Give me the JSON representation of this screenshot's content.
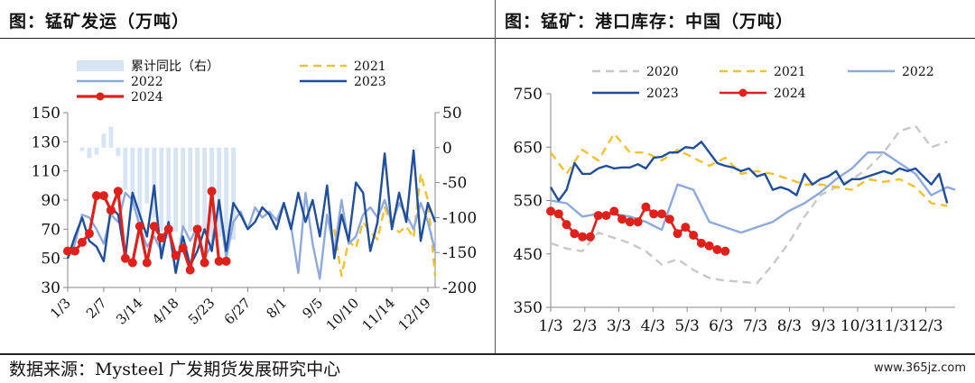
{
  "left": {
    "title": "图：锰矿发运（万吨）",
    "chart_data": {
      "type": "line",
      "x_tick_labels": [
        "1/3",
        "2/7",
        "3/14",
        "4/18",
        "5/23",
        "6/27",
        "8/1",
        "9/5",
        "10/10",
        "11/14",
        "12/19"
      ],
      "ylim_left": [
        30,
        150
      ],
      "yticks_left": [
        30,
        50,
        70,
        90,
        110,
        130,
        150
      ],
      "ylim_right": [
        -200,
        50
      ],
      "yticks_right": [
        -200,
        -150,
        -100,
        -50,
        0,
        50
      ],
      "x_range_weeks": [
        0,
        51
      ],
      "grid": false,
      "legend": "top",
      "series": [
        {
          "name": "累计同比（右）",
          "kind": "bar",
          "axis": "right",
          "color": "#d6e4f3",
          "x": [
            1,
            2,
            3,
            4,
            5,
            6,
            7,
            8,
            9,
            10,
            11,
            12,
            13,
            14,
            15,
            16,
            17,
            18,
            19,
            20,
            21,
            22,
            23
          ],
          "values": [
            0,
            -5,
            -15,
            -10,
            20,
            30,
            -12,
            -60,
            -90,
            -108,
            -80,
            -100,
            -120,
            -130,
            -120,
            -115,
            -120,
            -118,
            -122,
            -128,
            -128,
            -130,
            -132
          ]
        },
        {
          "name": "2021",
          "kind": "line",
          "axis": "left",
          "color": "#f2c12e",
          "dash": "9 6",
          "width": 2.4,
          "x": [
            37,
            38,
            39,
            40,
            41,
            42,
            43,
            44,
            45,
            46,
            47,
            48,
            49,
            50,
            51
          ],
          "values": [
            70,
            38,
            62,
            57,
            75,
            68,
            63,
            85,
            72,
            68,
            72,
            64,
            108,
            90,
            38
          ]
        },
        {
          "name": "2022",
          "kind": "line",
          "axis": "left",
          "color": "#8ea9db",
          "width": 2.4,
          "x": [
            0,
            1,
            2,
            3,
            4,
            5,
            6,
            7,
            8,
            9,
            10,
            11,
            12,
            13,
            14,
            15,
            16,
            17,
            18,
            19,
            20,
            21,
            22,
            23,
            24,
            25,
            26,
            27,
            28,
            29,
            30,
            31,
            32,
            33,
            34,
            35,
            36,
            37,
            38,
            39,
            40,
            41,
            42,
            43,
            44,
            45,
            46,
            47,
            48,
            49,
            50,
            51
          ],
          "values": [
            50,
            60,
            80,
            78,
            70,
            60,
            80,
            75,
            95,
            90,
            72,
            58,
            65,
            55,
            70,
            40,
            72,
            62,
            72,
            50,
            60,
            88,
            50,
            75,
            82,
            70,
            85,
            78,
            82,
            76,
            88,
            72,
            40,
            95,
            60,
            36,
            80,
            55,
            90,
            60,
            65,
            80,
            85,
            78,
            90,
            74,
            88,
            80,
            70,
            88,
            75,
            55
          ]
        },
        {
          "name": "2023",
          "kind": "line",
          "axis": "left",
          "color": "#1f4e9c",
          "width": 2.4,
          "x": [
            0,
            1,
            2,
            3,
            4,
            5,
            6,
            7,
            8,
            9,
            10,
            11,
            12,
            13,
            14,
            15,
            16,
            17,
            18,
            19,
            20,
            21,
            22,
            23,
            24,
            25,
            26,
            27,
            28,
            29,
            30,
            31,
            32,
            33,
            34,
            35,
            36,
            37,
            38,
            39,
            40,
            41,
            42,
            43,
            44,
            45,
            46,
            47,
            48,
            49,
            50,
            51
          ],
          "values": [
            50,
            65,
            78,
            62,
            58,
            48,
            85,
            80,
            50,
            95,
            80,
            65,
            100,
            50,
            75,
            40,
            65,
            45,
            55,
            70,
            55,
            90,
            55,
            88,
            80,
            70,
            75,
            85,
            80,
            70,
            88,
            70,
            95,
            75,
            90,
            65,
            100,
            50,
            80,
            62,
            102,
            95,
            55,
            75,
            122,
            70,
            95,
            75,
            124,
            62,
            88,
            75
          ]
        },
        {
          "name": "2024",
          "kind": "line-marker",
          "axis": "left",
          "color": "#e0201b",
          "width": 3.2,
          "x": [
            0,
            1,
            2,
            3,
            4,
            5,
            6,
            7,
            8,
            9,
            10,
            11,
            12,
            13,
            14,
            15,
            16,
            17,
            18,
            19,
            20,
            21,
            22
          ],
          "values": [
            55,
            55,
            61,
            67,
            93,
            93,
            83,
            96,
            50,
            47,
            72,
            47,
            72,
            64,
            70,
            52,
            57,
            42,
            70,
            47,
            96,
            48,
            48
          ]
        }
      ]
    }
  },
  "right": {
    "title": "图：锰矿：港口库存：中国（万吨）",
    "chart_data": {
      "type": "line",
      "x_tick_labels": [
        "1/3",
        "2/3",
        "3/3",
        "4/3",
        "5/3",
        "6/3",
        "7/3",
        "8/3",
        "9/3",
        "10/3",
        "11/3",
        "12/3"
      ],
      "ylim": [
        350,
        750
      ],
      "yticks": [
        350,
        450,
        550,
        650,
        750
      ],
      "x_range_weeks": [
        0,
        51
      ],
      "grid": false,
      "legend": "top",
      "series": [
        {
          "name": "2020",
          "kind": "line",
          "color": "#c8c8c8",
          "dash": "9 6",
          "width": 2.4,
          "x": [
            0,
            2,
            4,
            6,
            8,
            10,
            12,
            14,
            16,
            18,
            20,
            22,
            24,
            26,
            28,
            30,
            32,
            34,
            36,
            38,
            40,
            42,
            44,
            46,
            48,
            50
          ],
          "values": [
            470,
            460,
            455,
            490,
            480,
            470,
            455,
            430,
            440,
            420,
            405,
            400,
            398,
            395,
            430,
            470,
            520,
            560,
            575,
            590,
            610,
            640,
            680,
            690,
            650,
            660
          ]
        },
        {
          "name": "2021",
          "kind": "line",
          "color": "#f2c12e",
          "dash": "9 6",
          "width": 2.4,
          "x": [
            0,
            2,
            4,
            6,
            8,
            10,
            12,
            14,
            16,
            18,
            20,
            22,
            24,
            26,
            28,
            30,
            32,
            34,
            36,
            38,
            40,
            42,
            44,
            46,
            48,
            50
          ],
          "values": [
            640,
            600,
            645,
            625,
            675,
            640,
            640,
            625,
            645,
            630,
            615,
            630,
            600,
            605,
            600,
            590,
            580,
            580,
            575,
            570,
            590,
            585,
            590,
            575,
            545,
            540
          ]
        },
        {
          "name": "2022",
          "kind": "line",
          "color": "#8ea9db",
          "width": 2.4,
          "x": [
            0,
            2,
            4,
            6,
            8,
            10,
            12,
            14,
            16,
            18,
            20,
            22,
            24,
            26,
            28,
            30,
            32,
            34,
            36,
            38,
            40,
            42,
            44,
            46,
            48,
            50,
            51
          ],
          "values": [
            550,
            545,
            520,
            525,
            525,
            520,
            510,
            495,
            580,
            570,
            510,
            500,
            490,
            500,
            510,
            530,
            545,
            565,
            590,
            610,
            640,
            640,
            620,
            600,
            560,
            575,
            570
          ]
        },
        {
          "name": "2023",
          "kind": "line",
          "color": "#1f4e9c",
          "width": 2.4,
          "x": [
            0,
            1,
            2,
            3,
            4,
            5,
            6,
            7,
            8,
            9,
            10,
            11,
            12,
            13,
            14,
            15,
            16,
            17,
            18,
            19,
            20,
            21,
            22,
            23,
            24,
            25,
            26,
            27,
            28,
            29,
            30,
            31,
            32,
            33,
            34,
            35,
            36,
            37,
            38,
            39,
            40,
            41,
            42,
            43,
            44,
            45,
            46,
            47,
            48,
            49,
            50
          ],
          "values": [
            575,
            550,
            570,
            620,
            600,
            600,
            610,
            615,
            610,
            612,
            612,
            618,
            610,
            630,
            632,
            640,
            640,
            650,
            648,
            660,
            640,
            620,
            615,
            612,
            605,
            610,
            595,
            600,
            570,
            575,
            570,
            560,
            600,
            580,
            590,
            595,
            605,
            580,
            590,
            590,
            595,
            600,
            605,
            600,
            610,
            605,
            610,
            595,
            580,
            600,
            545
          ]
        },
        {
          "name": "2024",
          "kind": "line-marker",
          "color": "#e0201b",
          "width": 2.6,
          "x": [
            0,
            1,
            2,
            3,
            4,
            5,
            6,
            7,
            8,
            9,
            10,
            11,
            12,
            13,
            14,
            15,
            16,
            17,
            18,
            19,
            20,
            21,
            22
          ],
          "values": [
            530,
            525,
            505,
            488,
            482,
            482,
            522,
            522,
            530,
            515,
            510,
            510,
            538,
            525,
            525,
            515,
            488,
            500,
            485,
            470,
            465,
            458,
            455
          ]
        }
      ]
    }
  },
  "footer": {
    "source": "数据来源：Mysteel  广发期货发展研究中心",
    "url": "www.365jz.com"
  }
}
